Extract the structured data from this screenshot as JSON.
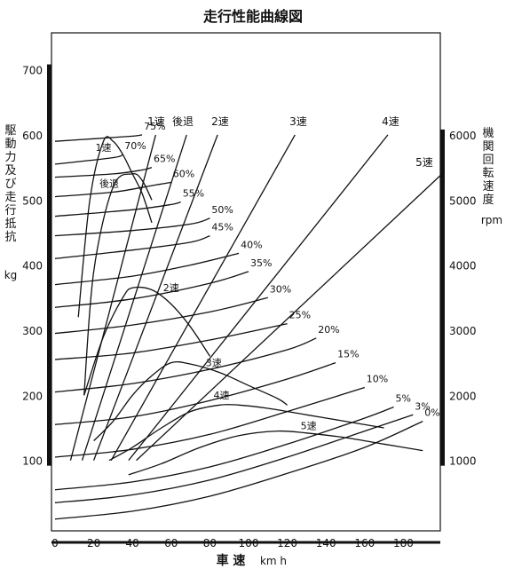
{
  "chart_data": {
    "type": "line",
    "title": "走行性能曲線図",
    "xlabel": "車 速",
    "xunit": "km h",
    "ylabel_left": "駆動力及び走行抵抗",
    "yunit_left": "kg",
    "ylabel_right": "機関回転速度",
    "yunit_right": "rpm",
    "xlim": [
      0,
      200
    ],
    "ylim_left": [
      0,
      750
    ],
    "ylim_right": [
      0,
      7500
    ],
    "x_ticks": [
      "0",
      "20",
      "40",
      "60",
      "80",
      "100",
      "120",
      "140",
      "160",
      "180"
    ],
    "x_tick_values": [
      0,
      20,
      40,
      60,
      80,
      100,
      120,
      140,
      160,
      180
    ],
    "y_ticks_left": [
      "100",
      "200",
      "300",
      "400",
      "500",
      "600",
      "700"
    ],
    "y_tick_values_left": [
      100,
      200,
      300,
      400,
      500,
      600,
      700
    ],
    "y_ticks_right": [
      "1000",
      "2000",
      "3000",
      "4000",
      "5000",
      "6000"
    ],
    "y_tick_values_right": [
      1000,
      2000,
      3000,
      4000,
      5000,
      6000
    ],
    "resistance_curves": [
      {
        "label": "0%",
        "x": [
          0,
          40,
          80,
          120,
          160,
          190
        ],
        "y": [
          10,
          22,
          45,
          80,
          120,
          160
        ]
      },
      {
        "label": "3%",
        "x": [
          0,
          40,
          80,
          120,
          160,
          185
        ],
        "y": [
          35,
          47,
          70,
          105,
          145,
          170
        ]
      },
      {
        "label": "5%",
        "x": [
          0,
          40,
          80,
          120,
          160,
          175
        ],
        "y": [
          55,
          67,
          90,
          125,
          165,
          182
        ]
      },
      {
        "label": "10%",
        "x": [
          0,
          40,
          80,
          120,
          160
        ],
        "y": [
          105,
          117,
          140,
          175,
          212
        ]
      },
      {
        "label": "15%",
        "x": [
          0,
          40,
          80,
          120,
          145
        ],
        "y": [
          155,
          167,
          192,
          225,
          250
        ]
      },
      {
        "label": "20%",
        "x": [
          0,
          40,
          80,
          120,
          135
        ],
        "y": [
          205,
          218,
          240,
          270,
          288
        ]
      },
      {
        "label": "25%",
        "x": [
          0,
          40,
          80,
          120
        ],
        "y": [
          255,
          265,
          285,
          310
        ]
      },
      {
        "label": "30%",
        "x": [
          0,
          40,
          80,
          110
        ],
        "y": [
          295,
          308,
          328,
          350
        ]
      },
      {
        "label": "35%",
        "x": [
          0,
          40,
          80,
          100
        ],
        "y": [
          335,
          348,
          372,
          390
        ]
      },
      {
        "label": "40%",
        "x": [
          0,
          40,
          70,
          95
        ],
        "y": [
          370,
          383,
          400,
          418
        ]
      },
      {
        "label": "45%",
        "x": [
          0,
          40,
          70,
          80
        ],
        "y": [
          410,
          423,
          435,
          445
        ]
      },
      {
        "label": "50%",
        "x": [
          0,
          40,
          70,
          80
        ],
        "y": [
          445,
          453,
          463,
          472
        ]
      },
      {
        "label": "55%",
        "x": [
          0,
          40,
          60,
          65
        ],
        "y": [
          475,
          485,
          493,
          497
        ]
      },
      {
        "label": "60%",
        "x": [
          0,
          30,
          50,
          60
        ],
        "y": [
          505,
          512,
          522,
          527
        ]
      },
      {
        "label": "65%",
        "x": [
          0,
          30,
          45,
          50
        ],
        "y": [
          535,
          540,
          546,
          550
        ]
      },
      {
        "label": "70%",
        "x": [
          0,
          30,
          35
        ],
        "y": [
          555,
          565,
          570
        ]
      },
      {
        "label": "75%",
        "x": [
          0,
          20,
          40,
          45
        ],
        "y": [
          590,
          594,
          598,
          600
        ]
      }
    ],
    "driving_force_curves": [
      {
        "label": "1速",
        "x": [
          12,
          18,
          25,
          30,
          35,
          40,
          45,
          50
        ],
        "y": [
          320,
          500,
          590,
          590,
          570,
          540,
          510,
          465
        ]
      },
      {
        "label": "後退",
        "x": [
          15,
          20,
          30,
          40,
          45,
          50
        ],
        "y": [
          200,
          390,
          520,
          540,
          530,
          500
        ]
      },
      {
        "label": "2速",
        "x": [
          15,
          25,
          35,
          40,
          50,
          60,
          70,
          80
        ],
        "y": [
          200,
          290,
          350,
          365,
          362,
          340,
          305,
          260
        ]
      },
      {
        "label": "3速",
        "x": [
          20,
          30,
          40,
          50,
          60,
          70,
          85,
          100,
          115,
          120
        ],
        "y": [
          130,
          160,
          200,
          230,
          250,
          248,
          235,
          215,
          195,
          185
        ]
      },
      {
        "label": "4速",
        "x": [
          28,
          40,
          55,
          70,
          85,
          95,
          110,
          130,
          150,
          170
        ],
        "y": [
          100,
          120,
          150,
          175,
          185,
          185,
          180,
          170,
          160,
          150
        ]
      },
      {
        "label": "5速",
        "x": [
          38,
          55,
          75,
          95,
          115,
          130,
          150,
          170,
          190
        ],
        "y": [
          78,
          95,
          120,
          138,
          145,
          142,
          135,
          125,
          115
        ]
      }
    ],
    "engine_speed_lines": [
      {
        "label": "1速",
        "x": [
          8,
          52
        ],
        "rpm": [
          1000,
          6000
        ]
      },
      {
        "label": "後退",
        "x": [
          14,
          68
        ],
        "rpm": [
          1000,
          6000
        ]
      },
      {
        "label": "2速",
        "x": [
          20,
          84
        ],
        "rpm": [
          1000,
          6000
        ]
      },
      {
        "label": "3速",
        "x": [
          29,
          124
        ],
        "rpm": [
          1000,
          6000
        ]
      },
      {
        "label": "4速",
        "x": [
          38,
          172
        ],
        "rpm": [
          1000,
          6000
        ]
      },
      {
        "label": "5速",
        "x": [
          42,
          200
        ],
        "rpm": [
          1000,
          5400
        ]
      }
    ],
    "gear_labels_top": [
      "1速",
      "後退",
      "2速",
      "3速",
      "4速",
      "5速"
    ],
    "gear_labels_inside": [
      "1速",
      "後退",
      "2速",
      "3速",
      "4速",
      "5速"
    ]
  }
}
